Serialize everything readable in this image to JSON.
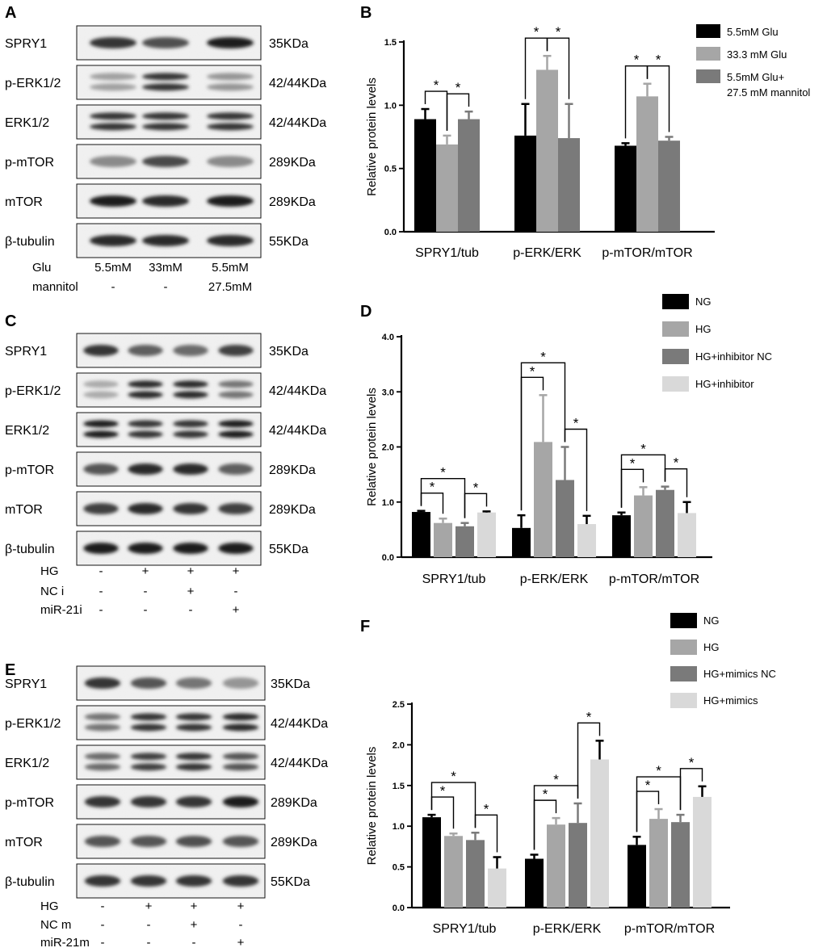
{
  "panels": [
    {
      "letter": "A",
      "type": "western-blot",
      "lanes": 3,
      "bands": [
        {
          "name": "SPRY1",
          "size": "35KDa",
          "intensity": [
            0.85,
            0.72,
            0.95
          ],
          "double": false
        },
        {
          "name": "p-ERK1/2",
          "size": "42/44KDa",
          "intensity": [
            0.35,
            0.85,
            0.4
          ],
          "double": true
        },
        {
          "name": "ERK1/2",
          "size": "42/44KDa",
          "intensity": [
            0.85,
            0.85,
            0.85
          ],
          "double": true
        },
        {
          "name": "p-mTOR",
          "size": "289KDa",
          "intensity": [
            0.45,
            0.75,
            0.45
          ],
          "double": false
        },
        {
          "name": "mTOR",
          "size": "289KDa",
          "intensity": [
            0.95,
            0.9,
            0.95
          ],
          "double": false
        },
        {
          "name": "β-tubulin",
          "size": "55KDa",
          "intensity": [
            0.9,
            0.9,
            0.9
          ],
          "double": false
        }
      ],
      "conditions": [
        {
          "label": "Glu",
          "values": [
            "5.5mM",
            "33mM",
            "5.5mM"
          ]
        },
        {
          "label": "mannitol",
          "values": [
            "-",
            "-",
            "27.5mM"
          ]
        }
      ]
    },
    {
      "letter": "C",
      "type": "western-blot",
      "lanes": 4,
      "bands": [
        {
          "name": "SPRY1",
          "size": "35KDa",
          "intensity": [
            0.85,
            0.65,
            0.6,
            0.8
          ],
          "double": false
        },
        {
          "name": "p-ERK1/2",
          "size": "42/44KDa",
          "intensity": [
            0.3,
            0.9,
            0.9,
            0.55
          ],
          "double": true
        },
        {
          "name": "ERK1/2",
          "size": "42/44KDa",
          "intensity": [
            0.95,
            0.85,
            0.85,
            0.95
          ],
          "double": true
        },
        {
          "name": "p-mTOR",
          "size": "289KDa",
          "intensity": [
            0.7,
            0.9,
            0.9,
            0.65
          ],
          "double": false
        },
        {
          "name": "mTOR",
          "size": "289KDa",
          "intensity": [
            0.8,
            0.9,
            0.85,
            0.8
          ],
          "double": false
        },
        {
          "name": "β-tubulin",
          "size": "55KDa",
          "intensity": [
            0.95,
            0.95,
            0.95,
            0.95
          ],
          "double": false
        }
      ],
      "conditions": [
        {
          "label": "HG",
          "values": [
            "-",
            "+",
            "+",
            "+"
          ]
        },
        {
          "label": "NC i",
          "values": [
            "-",
            "-",
            "+",
            "-"
          ]
        },
        {
          "label": "miR-21i",
          "values": [
            "-",
            "-",
            "-",
            "+"
          ]
        }
      ]
    },
    {
      "letter": "E",
      "type": "western-blot",
      "lanes": 4,
      "bands": [
        {
          "name": "SPRY1",
          "size": "35KDa",
          "intensity": [
            0.85,
            0.7,
            0.55,
            0.4
          ],
          "double": false
        },
        {
          "name": "p-ERK1/2",
          "size": "42/44KDa",
          "intensity": [
            0.55,
            0.85,
            0.85,
            0.9
          ],
          "double": true
        },
        {
          "name": "ERK1/2",
          "size": "42/44KDa",
          "intensity": [
            0.6,
            0.8,
            0.85,
            0.7
          ],
          "double": true
        },
        {
          "name": "p-mTOR",
          "size": "289KDa",
          "intensity": [
            0.85,
            0.85,
            0.85,
            0.95
          ],
          "double": false
        },
        {
          "name": "mTOR",
          "size": "289KDa",
          "intensity": [
            0.7,
            0.7,
            0.72,
            0.7
          ],
          "double": false
        },
        {
          "name": "β-tubulin",
          "size": "55KDa",
          "intensity": [
            0.85,
            0.85,
            0.85,
            0.85
          ],
          "double": false
        }
      ],
      "conditions": [
        {
          "label": "HG",
          "values": [
            "-",
            "+",
            "+",
            "+"
          ]
        },
        {
          "label": "NC m",
          "values": [
            "-",
            "-",
            "+",
            "-"
          ]
        },
        {
          "label": "miR-21m",
          "values": [
            "-",
            "-",
            "-",
            "+"
          ]
        }
      ]
    }
  ],
  "chart_data": [
    {
      "letter": "B",
      "type": "bar",
      "ylabel": "Relative protein levels",
      "ylim": [
        0,
        1.5
      ],
      "yticks": [
        "0.0",
        "0.5",
        "1.0",
        "1.5"
      ],
      "categories": [
        "SPRY1/tub",
        "p-ERK/ERK",
        "p-mTOR/mTOR"
      ],
      "series": [
        {
          "name": "5.5mM Glu",
          "color": "#000000",
          "values": [
            0.89,
            0.76,
            0.68
          ],
          "errors": [
            0.08,
            0.25,
            0.02
          ]
        },
        {
          "name": "33.3 mM Glu",
          "color": "#a6a6a6",
          "values": [
            0.69,
            1.28,
            1.07
          ],
          "errors": [
            0.07,
            0.11,
            0.1
          ]
        },
        {
          "name": "5.5mM Glu+\n27.5 mM mannitol",
          "color": "#7a7a7a",
          "values": [
            0.89,
            0.74,
            0.72
          ],
          "errors": [
            0.06,
            0.27,
            0.03
          ]
        }
      ],
      "legend": "right",
      "significance": [
        {
          "group": 0,
          "from": 0,
          "to": 1,
          "symbol": "*"
        },
        {
          "group": 0,
          "from": 1,
          "to": 2,
          "symbol": "*"
        },
        {
          "group": 1,
          "from": 0,
          "to": 1,
          "symbol": "*"
        },
        {
          "group": 1,
          "from": 1,
          "to": 2,
          "symbol": "*"
        },
        {
          "group": 2,
          "from": 0,
          "to": 1,
          "symbol": "*"
        },
        {
          "group": 2,
          "from": 1,
          "to": 2,
          "symbol": "*"
        }
      ]
    },
    {
      "letter": "D",
      "type": "bar",
      "ylabel": "Relative protein levels",
      "ylim": [
        0,
        4.0
      ],
      "yticks": [
        "0.0",
        "1.0",
        "2.0",
        "3.0",
        "4.0"
      ],
      "categories": [
        "SPRY1/tub",
        "p-ERK/ERK",
        "p-mTOR/mTOR"
      ],
      "series": [
        {
          "name": "NG",
          "color": "#000000",
          "values": [
            0.82,
            0.53,
            0.76
          ],
          "errors": [
            0.02,
            0.23,
            0.05
          ]
        },
        {
          "name": "HG",
          "color": "#a6a6a6",
          "values": [
            0.62,
            2.09,
            1.12
          ],
          "errors": [
            0.08,
            0.85,
            0.15
          ]
        },
        {
          "name": "HG+inhibitor NC",
          "color": "#7a7a7a",
          "values": [
            0.56,
            1.4,
            1.22
          ],
          "errors": [
            0.06,
            0.6,
            0.06
          ]
        },
        {
          "name": "HG+inhibitor",
          "color": "#d9d9d9",
          "values": [
            0.81,
            0.6,
            0.8
          ],
          "errors": [
            0.02,
            0.15,
            0.2
          ]
        }
      ],
      "legend": "top-right",
      "significance": [
        {
          "group": 0,
          "from": 0,
          "to": 1,
          "symbol": "*"
        },
        {
          "group": 0,
          "from": 0,
          "to": 2,
          "symbol": "*"
        },
        {
          "group": 0,
          "from": 2,
          "to": 3,
          "symbol": "*"
        },
        {
          "group": 1,
          "from": 0,
          "to": 1,
          "symbol": "*"
        },
        {
          "group": 1,
          "from": 0,
          "to": 2,
          "symbol": "*"
        },
        {
          "group": 1,
          "from": 2,
          "to": 3,
          "symbol": "*"
        },
        {
          "group": 2,
          "from": 0,
          "to": 1,
          "symbol": "*"
        },
        {
          "group": 2,
          "from": 0,
          "to": 2,
          "symbol": "*"
        },
        {
          "group": 2,
          "from": 2,
          "to": 3,
          "symbol": "*"
        }
      ]
    },
    {
      "letter": "F",
      "type": "bar",
      "ylabel": "Relative protein levels",
      "ylim": [
        0,
        2.5
      ],
      "yticks": [
        "0.0",
        "0.5",
        "1.0",
        "1.5",
        "2.0",
        "2.5"
      ],
      "categories": [
        "SPRY1/tub",
        "p-ERK/ERK",
        "p-mTOR/mTOR"
      ],
      "series": [
        {
          "name": "NG",
          "color": "#000000",
          "values": [
            1.11,
            0.6,
            0.77
          ],
          "errors": [
            0.03,
            0.05,
            0.1
          ]
        },
        {
          "name": "HG",
          "color": "#a6a6a6",
          "values": [
            0.88,
            1.02,
            1.09
          ],
          "errors": [
            0.03,
            0.08,
            0.12
          ]
        },
        {
          "name": "HG+mimics NC",
          "color": "#7a7a7a",
          "values": [
            0.83,
            1.04,
            1.05
          ],
          "errors": [
            0.09,
            0.24,
            0.09
          ]
        },
        {
          "name": "HG+mimics",
          "color": "#d9d9d9",
          "values": [
            0.48,
            1.82,
            1.36
          ],
          "errors": [
            0.14,
            0.23,
            0.13
          ]
        }
      ],
      "legend": "top-right",
      "significance": [
        {
          "group": 0,
          "from": 0,
          "to": 1,
          "symbol": "*"
        },
        {
          "group": 0,
          "from": 0,
          "to": 2,
          "symbol": "*"
        },
        {
          "group": 0,
          "from": 2,
          "to": 3,
          "symbol": "*"
        },
        {
          "group": 1,
          "from": 0,
          "to": 1,
          "symbol": "*"
        },
        {
          "group": 1,
          "from": 0,
          "to": 2,
          "symbol": "*"
        },
        {
          "group": 1,
          "from": 2,
          "to": 3,
          "symbol": "*"
        },
        {
          "group": 2,
          "from": 0,
          "to": 1,
          "symbol": "*"
        },
        {
          "group": 2,
          "from": 0,
          "to": 2,
          "symbol": "*"
        },
        {
          "group": 2,
          "from": 2,
          "to": 3,
          "symbol": "*"
        }
      ]
    }
  ]
}
